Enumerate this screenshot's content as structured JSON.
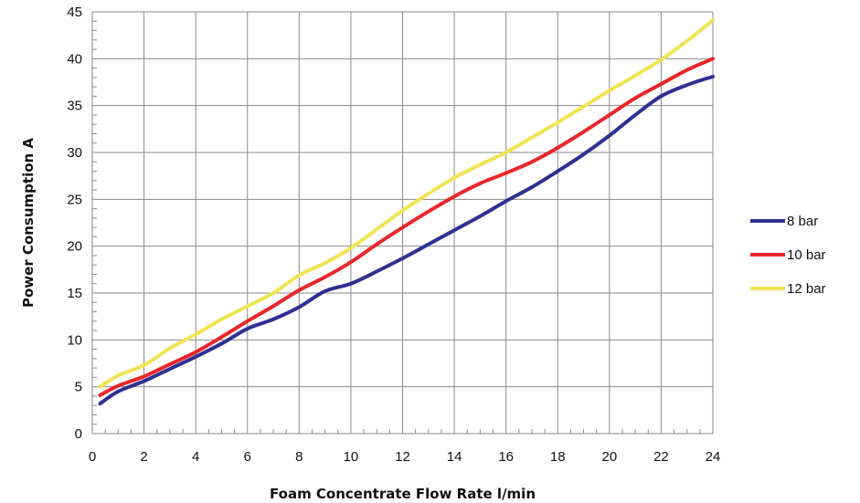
{
  "chart_data": {
    "type": "line",
    "title": "",
    "xlabel": "Foam Concentrate Flow Rate l/min",
    "ylabel": "Power Consumption A",
    "xlim": [
      0,
      24
    ],
    "ylim": [
      0,
      45
    ],
    "xticks": [
      0,
      2,
      4,
      6,
      8,
      10,
      12,
      14,
      16,
      18,
      20,
      22,
      24
    ],
    "yticks": [
      0,
      5,
      10,
      15,
      20,
      25,
      30,
      35,
      40,
      45
    ],
    "grid": true,
    "legend_position": "right",
    "series": [
      {
        "name": "8 bar",
        "color": "#2e3192",
        "x": [
          0.3,
          1,
          2,
          3,
          4,
          5,
          6,
          7,
          8,
          9,
          10,
          11,
          12,
          13,
          14,
          15,
          16,
          17,
          18,
          19,
          20,
          21,
          22,
          23,
          24
        ],
        "y": [
          3.2,
          4.5,
          5.6,
          6.9,
          8.2,
          9.6,
          11.2,
          12.2,
          13.5,
          15.2,
          16.0,
          17.3,
          18.7,
          20.2,
          21.7,
          23.2,
          24.8,
          26.3,
          28.0,
          29.8,
          31.8,
          34.0,
          36.0,
          37.2,
          38.1
        ]
      },
      {
        "name": "10 bar",
        "color": "#e8262b",
        "x": [
          0.3,
          1,
          2,
          3,
          4,
          5,
          6,
          7,
          8,
          9,
          10,
          11,
          12,
          13,
          14,
          15,
          16,
          17,
          18,
          19,
          20,
          21,
          22,
          23,
          24
        ],
        "y": [
          4.1,
          5.1,
          6.1,
          7.4,
          8.7,
          10.3,
          12.0,
          13.6,
          15.3,
          16.7,
          18.3,
          20.2,
          22.0,
          23.7,
          25.3,
          26.7,
          27.8,
          29.0,
          30.5,
          32.2,
          34.0,
          35.8,
          37.3,
          38.8,
          40.0
        ]
      },
      {
        "name": "12 bar",
        "color": "#f0e455",
        "x": [
          0.3,
          1,
          2,
          3,
          4,
          5,
          6,
          7,
          8,
          9,
          10,
          11,
          12,
          13,
          14,
          15,
          16,
          17,
          18,
          19,
          20,
          21,
          22,
          23,
          24
        ],
        "y": [
          5.0,
          6.2,
          7.3,
          9.1,
          10.6,
          12.2,
          13.6,
          15.0,
          16.9,
          18.2,
          19.8,
          21.8,
          23.8,
          25.6,
          27.3,
          28.7,
          30.0,
          31.6,
          33.2,
          34.9,
          36.6,
          38.2,
          39.9,
          41.9,
          44.1
        ]
      }
    ]
  }
}
